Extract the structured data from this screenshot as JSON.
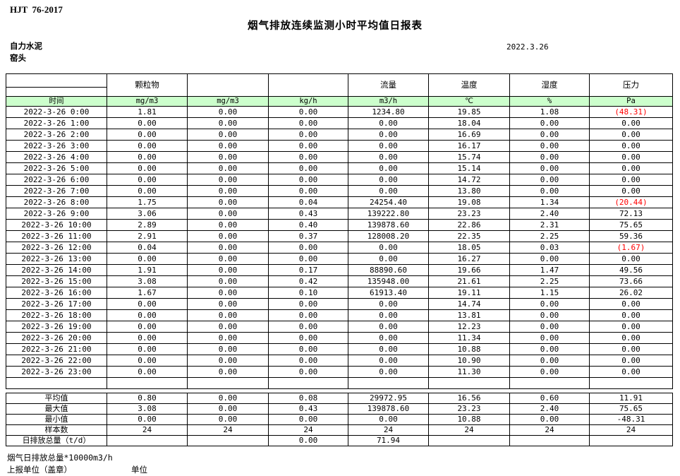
{
  "doc": {
    "standard": "HJT  76-2017",
    "title": "烟气排放连续监测小时平均值日报表",
    "company": "自力水泥",
    "station": "窑头",
    "date": "2022.3.26"
  },
  "table": {
    "param_headers": [
      "",
      "颗粒物",
      "",
      "",
      "流量",
      "温度",
      "湿度",
      "压力"
    ],
    "unit_row": [
      "时间",
      "mg/m3",
      "mg/m3",
      "kg/h",
      "m3/h",
      "℃",
      "%",
      "Pa"
    ],
    "rows": [
      {
        "time": "2022-3-26 0:00",
        "values": [
          "1.81",
          "0.00",
          "0.00",
          "1234.80",
          "19.85",
          "1.08",
          "(48.31)"
        ],
        "red": [
          6
        ]
      },
      {
        "time": "2022-3-26 1:00",
        "values": [
          "0.00",
          "0.00",
          "0.00",
          "0.00",
          "18.04",
          "0.00",
          "0.00"
        ]
      },
      {
        "time": "2022-3-26 2:00",
        "values": [
          "0.00",
          "0.00",
          "0.00",
          "0.00",
          "16.69",
          "0.00",
          "0.00"
        ]
      },
      {
        "time": "2022-3-26 3:00",
        "values": [
          "0.00",
          "0.00",
          "0.00",
          "0.00",
          "16.17",
          "0.00",
          "0.00"
        ]
      },
      {
        "time": "2022-3-26 4:00",
        "values": [
          "0.00",
          "0.00",
          "0.00",
          "0.00",
          "15.74",
          "0.00",
          "0.00"
        ]
      },
      {
        "time": "2022-3-26 5:00",
        "values": [
          "0.00",
          "0.00",
          "0.00",
          "0.00",
          "15.14",
          "0.00",
          "0.00"
        ]
      },
      {
        "time": "2022-3-26 6:00",
        "values": [
          "0.00",
          "0.00",
          "0.00",
          "0.00",
          "14.72",
          "0.00",
          "0.00"
        ]
      },
      {
        "time": "2022-3-26 7:00",
        "values": [
          "0.00",
          "0.00",
          "0.00",
          "0.00",
          "13.80",
          "0.00",
          "0.00"
        ]
      },
      {
        "time": "2022-3-26 8:00",
        "values": [
          "1.75",
          "0.00",
          "0.04",
          "24254.40",
          "19.08",
          "1.34",
          "(20.44)"
        ],
        "red": [
          6
        ]
      },
      {
        "time": "2022-3-26 9:00",
        "values": [
          "3.06",
          "0.00",
          "0.43",
          "139222.80",
          "23.23",
          "2.40",
          "72.13"
        ]
      },
      {
        "time": "2022-3-26 10:00",
        "values": [
          "2.89",
          "0.00",
          "0.40",
          "139878.60",
          "22.86",
          "2.31",
          "75.65"
        ]
      },
      {
        "time": "2022-3-26 11:00",
        "values": [
          "2.91",
          "0.00",
          "0.37",
          "128008.20",
          "22.35",
          "2.25",
          "59.36"
        ]
      },
      {
        "time": "2022-3-26 12:00",
        "values": [
          "0.04",
          "0.00",
          "0.00",
          "0.00",
          "18.05",
          "0.03",
          "(1.67)"
        ],
        "red": [
          6
        ]
      },
      {
        "time": "2022-3-26 13:00",
        "values": [
          "0.00",
          "0.00",
          "0.00",
          "0.00",
          "16.27",
          "0.00",
          "0.00"
        ]
      },
      {
        "time": "2022-3-26 14:00",
        "values": [
          "1.91",
          "0.00",
          "0.17",
          "88890.60",
          "19.66",
          "1.47",
          "49.56"
        ]
      },
      {
        "time": "2022-3-26 15:00",
        "values": [
          "3.08",
          "0.00",
          "0.42",
          "135948.00",
          "21.61",
          "2.25",
          "73.66"
        ]
      },
      {
        "time": "2022-3-26 16:00",
        "values": [
          "1.67",
          "0.00",
          "0.10",
          "61913.40",
          "19.11",
          "1.15",
          "26.02"
        ]
      },
      {
        "time": "2022-3-26 17:00",
        "values": [
          "0.00",
          "0.00",
          "0.00",
          "0.00",
          "14.74",
          "0.00",
          "0.00"
        ]
      },
      {
        "time": "2022-3-26 18:00",
        "values": [
          "0.00",
          "0.00",
          "0.00",
          "0.00",
          "13.81",
          "0.00",
          "0.00"
        ]
      },
      {
        "time": "2022-3-26 19:00",
        "values": [
          "0.00",
          "0.00",
          "0.00",
          "0.00",
          "12.23",
          "0.00",
          "0.00"
        ]
      },
      {
        "time": "2022-3-26 20:00",
        "values": [
          "0.00",
          "0.00",
          "0.00",
          "0.00",
          "11.34",
          "0.00",
          "0.00"
        ]
      },
      {
        "time": "2022-3-26 21:00",
        "values": [
          "0.00",
          "0.00",
          "0.00",
          "0.00",
          "10.88",
          "0.00",
          "0.00"
        ]
      },
      {
        "time": "2022-3-26 22:00",
        "values": [
          "0.00",
          "0.00",
          "0.00",
          "0.00",
          "10.90",
          "0.00",
          "0.00"
        ]
      },
      {
        "time": "2022-3-26 23:00",
        "values": [
          "0.00",
          "0.00",
          "0.00",
          "0.00",
          "11.30",
          "0.00",
          "0.00"
        ]
      }
    ],
    "summary": [
      {
        "label": "平均值",
        "values": [
          "0.80",
          "0.00",
          "0.08",
          "29972.95",
          "16.56",
          "0.60",
          "11.91"
        ]
      },
      {
        "label": "最大值",
        "values": [
          "3.08",
          "0.00",
          "0.43",
          "139878.60",
          "23.23",
          "2.40",
          "75.65"
        ]
      },
      {
        "label": "最小值",
        "values": [
          "0.00",
          "0.00",
          "0.00",
          "0.00",
          "10.88",
          "0.00",
          "-48.31"
        ]
      },
      {
        "label": "样本数",
        "values": [
          "24",
          "24",
          "24",
          "24",
          "24",
          "24",
          "24"
        ]
      },
      {
        "label": "日排放总量（t/d）",
        "values": [
          "",
          "",
          "0.00",
          "71.94",
          "",
          "",
          ""
        ]
      }
    ]
  },
  "footer": {
    "note": "烟气日排放总量*10000m3/h",
    "report_unit_label": "上报单位（盖章）",
    "unit_label": "单位"
  },
  "colors": {
    "header_green": "#ccffcc",
    "alert_red": "#ff0000",
    "border": "#000000"
  }
}
